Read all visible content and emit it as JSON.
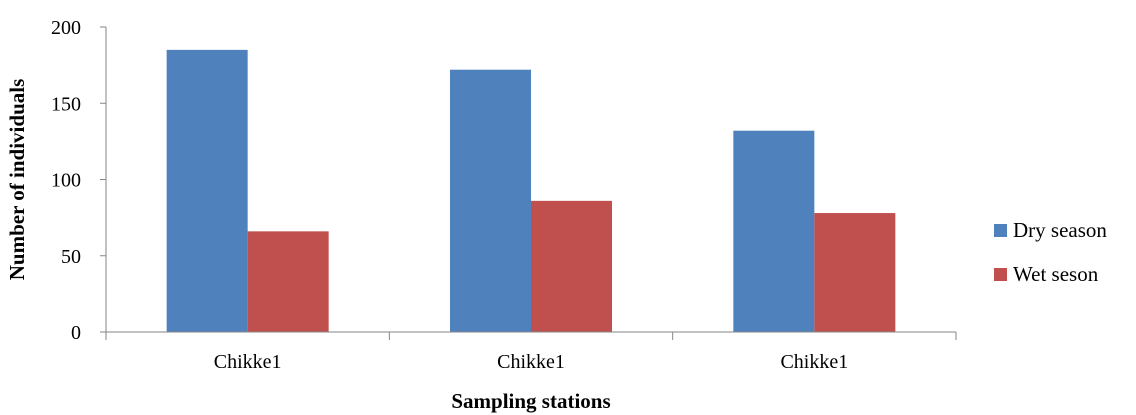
{
  "chart_data": {
    "type": "bar",
    "title": "",
    "xlabel": "Sampling stations",
    "ylabel": "Number of individuals",
    "categories": [
      "Chikke1",
      "Chikke1",
      "Chikke1"
    ],
    "series": [
      {
        "name": "Dry season",
        "color": "#4F81BD",
        "values": [
          185,
          172,
          132
        ]
      },
      {
        "name": "Wet seson",
        "color": "#C0504D",
        "values": [
          66,
          86,
          78
        ]
      }
    ],
    "ylim": [
      0,
      200
    ],
    "yticks": [
      0,
      50,
      100,
      150,
      200
    ],
    "grid": false,
    "legend_position": "right"
  }
}
